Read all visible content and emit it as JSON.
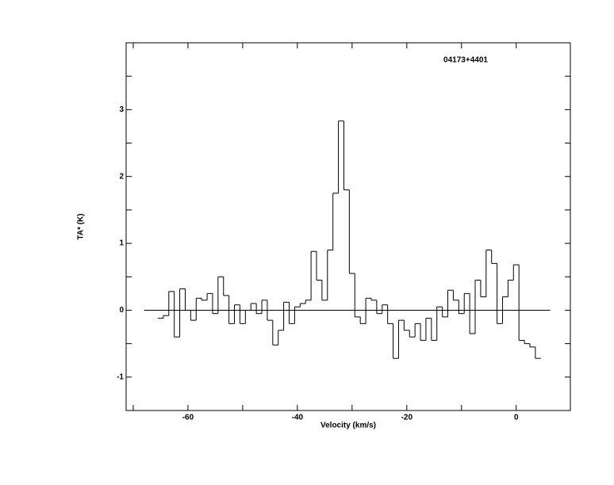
{
  "chart_data": {
    "type": "step",
    "title": "04173+4401",
    "x_label": "Velocity (km/s)",
    "y_label": "TA* (K)",
    "x": [
      -65,
      -64,
      -63,
      -62,
      -61,
      -60,
      -59,
      -58,
      -57,
      -56,
      -55,
      -54,
      -53,
      -52,
      -51,
      -50,
      -49,
      -48,
      -47,
      -46,
      -45,
      -44,
      -43,
      -42,
      -41,
      -40,
      -39,
      -38,
      -37,
      -36,
      -35,
      -34,
      -33,
      -32,
      -31,
      -30,
      -29,
      -28,
      -27,
      -26,
      -25,
      -24,
      -23,
      -22,
      -21,
      -20,
      -19,
      -18,
      -17,
      -16,
      -15,
      -14,
      -13,
      -12,
      -11,
      -10,
      -9,
      -8,
      -7,
      -6,
      -5,
      -4,
      -3,
      -2,
      -1,
      0,
      1,
      2,
      3,
      4
    ],
    "values": [
      -0.12,
      -0.08,
      0.28,
      -0.4,
      0.32,
      0.0,
      -0.15,
      0.18,
      0.15,
      0.25,
      -0.05,
      0.5,
      0.22,
      -0.2,
      0.08,
      -0.2,
      0.0,
      0.1,
      -0.05,
      0.15,
      -0.15,
      -0.52,
      -0.3,
      0.12,
      -0.2,
      0.05,
      0.1,
      0.15,
      0.88,
      0.45,
      0.15,
      0.9,
      1.75,
      2.83,
      1.8,
      0.55,
      -0.1,
      -0.2,
      0.18,
      0.15,
      -0.05,
      0.08,
      -0.2,
      -0.72,
      -0.15,
      -0.3,
      -0.4,
      -0.2,
      -0.45,
      -0.12,
      -0.45,
      0.05,
      -0.1,
      0.3,
      0.15,
      -0.05,
      0.25,
      -0.35,
      0.45,
      0.2,
      0.9,
      0.7,
      -0.2,
      0.2,
      0.45,
      0.68,
      -0.45,
      -0.5,
      -0.55,
      -0.72
    ],
    "xlim": [
      -71.3,
      9.9
    ],
    "ylim": [
      -1.5,
      4.0
    ],
    "xticks": [
      -60,
      -40,
      -20,
      0
    ],
    "xminor_ticks": [
      -70,
      -50,
      -30,
      -10
    ],
    "yticks": [
      -1,
      0,
      1,
      2,
      3
    ],
    "yminor_ticks": [
      -0.5,
      0.5,
      1.5,
      2.5,
      3.5
    ],
    "baseline": {
      "value": 0,
      "xrange": [
        -68,
        6.2
      ]
    },
    "color": "#000000"
  }
}
